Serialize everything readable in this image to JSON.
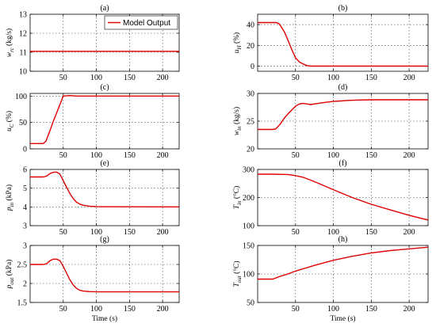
{
  "figure": {
    "legend_label": "Model Output",
    "xlabel": "Time (s)",
    "line_color": "#e00000"
  },
  "chart_data": [
    {
      "type": "line",
      "panel": "(a)",
      "ylabel": "w_rc (kg/s)",
      "xlim": [
        0,
        225
      ],
      "ylim": [
        10,
        13
      ],
      "xticks": [
        50,
        100,
        150,
        200
      ],
      "yticks": [
        10,
        11,
        12,
        13
      ],
      "grid": true,
      "legend": "top-right",
      "series": [
        {
          "name": "Model Output",
          "x": [
            0,
            225
          ],
          "y": [
            11.05,
            11.05
          ]
        }
      ]
    },
    {
      "type": "line",
      "panel": "(b)",
      "ylabel": "u_H (%)",
      "xlim": [
        0,
        225
      ],
      "ylim": [
        -5,
        50
      ],
      "xticks": [
        50,
        100,
        150,
        200
      ],
      "yticks": [
        0,
        20,
        40
      ],
      "grid": true,
      "series": [
        {
          "name": "Model Output",
          "x": [
            0,
            20,
            25,
            28,
            32,
            36,
            40,
            45,
            50,
            55,
            60,
            65,
            70,
            225
          ],
          "y": [
            42,
            42,
            42,
            41,
            37,
            32,
            25,
            16,
            8,
            4,
            2,
            0.5,
            0,
            0
          ]
        }
      ]
    },
    {
      "type": "line",
      "panel": "(c)",
      "ylabel": "u_C (%)",
      "xlim": [
        0,
        225
      ],
      "ylim": [
        0,
        105
      ],
      "xticks": [
        50,
        100,
        150,
        200
      ],
      "yticks": [
        0,
        50,
        100
      ],
      "grid": true,
      "series": [
        {
          "name": "Model Output",
          "x": [
            0,
            20,
            24,
            30,
            35,
            40,
            45,
            50,
            60,
            70,
            225
          ],
          "y": [
            10,
            10,
            15,
            35,
            52,
            68,
            84,
            100,
            101,
            100,
            100
          ]
        }
      ]
    },
    {
      "type": "line",
      "panel": "(d)",
      "ylabel": "w_in (kg/s)",
      "xlim": [
        0,
        225
      ],
      "ylim": [
        20,
        30
      ],
      "xticks": [
        50,
        100,
        150,
        200
      ],
      "yticks": [
        20,
        25,
        30
      ],
      "grid": true,
      "series": [
        {
          "name": "Model Output",
          "x": [
            0,
            20,
            24,
            30,
            35,
            40,
            45,
            50,
            55,
            60,
            65,
            70,
            80,
            90,
            100,
            110,
            120,
            130,
            150,
            225
          ],
          "y": [
            23.5,
            23.5,
            23.6,
            24.5,
            25.5,
            26.3,
            27,
            27.7,
            28.1,
            28.2,
            28.1,
            28.0,
            28.2,
            28.4,
            28.55,
            28.65,
            28.75,
            28.8,
            28.85,
            28.85
          ]
        }
      ]
    },
    {
      "type": "line",
      "panel": "(e)",
      "ylabel": "p_in (kPa)",
      "xlim": [
        0,
        225
      ],
      "ylim": [
        3,
        6
      ],
      "xticks": [
        50,
        100,
        150,
        200
      ],
      "yticks": [
        3,
        4,
        5,
        6
      ],
      "grid": true,
      "series": [
        {
          "name": "Model Output",
          "x": [
            0,
            20,
            25,
            30,
            35,
            40,
            45,
            50,
            55,
            60,
            65,
            70,
            75,
            80,
            90,
            100,
            110,
            225
          ],
          "y": [
            5.6,
            5.6,
            5.65,
            5.78,
            5.85,
            5.86,
            5.75,
            5.4,
            5.05,
            4.72,
            4.45,
            4.25,
            4.15,
            4.09,
            4.04,
            4.02,
            4.01,
            4.0
          ]
        }
      ]
    },
    {
      "type": "line",
      "panel": "(f)",
      "ylabel": "T_in (°C)",
      "xlim": [
        0,
        225
      ],
      "ylim": [
        100,
        300
      ],
      "xticks": [
        50,
        100,
        150,
        200
      ],
      "yticks": [
        100,
        200,
        300
      ],
      "grid": true,
      "series": [
        {
          "name": "Model Output",
          "x": [
            0,
            20,
            40,
            50,
            60,
            70,
            80,
            100,
            125,
            150,
            175,
            200,
            225
          ],
          "y": [
            283,
            283,
            282,
            278,
            272,
            262,
            251,
            228,
            200,
            176,
            156,
            137,
            120
          ]
        }
      ]
    },
    {
      "type": "line",
      "panel": "(g)",
      "ylabel": "p_out (kPa)",
      "xlim": [
        0,
        225
      ],
      "ylim": [
        1.5,
        3
      ],
      "xticks": [
        50,
        100,
        150,
        200
      ],
      "yticks": [
        1.5,
        2,
        2.5,
        3
      ],
      "grid": true,
      "series": [
        {
          "name": "Model Output",
          "x": [
            0,
            20,
            25,
            30,
            35,
            40,
            45,
            50,
            55,
            60,
            65,
            70,
            75,
            80,
            90,
            100,
            225
          ],
          "y": [
            2.5,
            2.5,
            2.52,
            2.6,
            2.64,
            2.64,
            2.6,
            2.45,
            2.27,
            2.1,
            1.96,
            1.87,
            1.82,
            1.8,
            1.785,
            1.78,
            1.78
          ]
        }
      ]
    },
    {
      "type": "line",
      "panel": "(h)",
      "ylabel": "T_out (°C)",
      "xlabel": "Time (s)",
      "xlim": [
        0,
        225
      ],
      "ylim": [
        50,
        150
      ],
      "xticks": [
        50,
        100,
        150,
        200
      ],
      "yticks": [
        50,
        100,
        150
      ],
      "grid": true,
      "series": [
        {
          "name": "Model Output",
          "x": [
            0,
            20,
            30,
            40,
            50,
            75,
            100,
            125,
            150,
            175,
            200,
            225
          ],
          "y": [
            91,
            91,
            96,
            100,
            105,
            115,
            124,
            131,
            137,
            141,
            144,
            147
          ]
        }
      ]
    }
  ]
}
